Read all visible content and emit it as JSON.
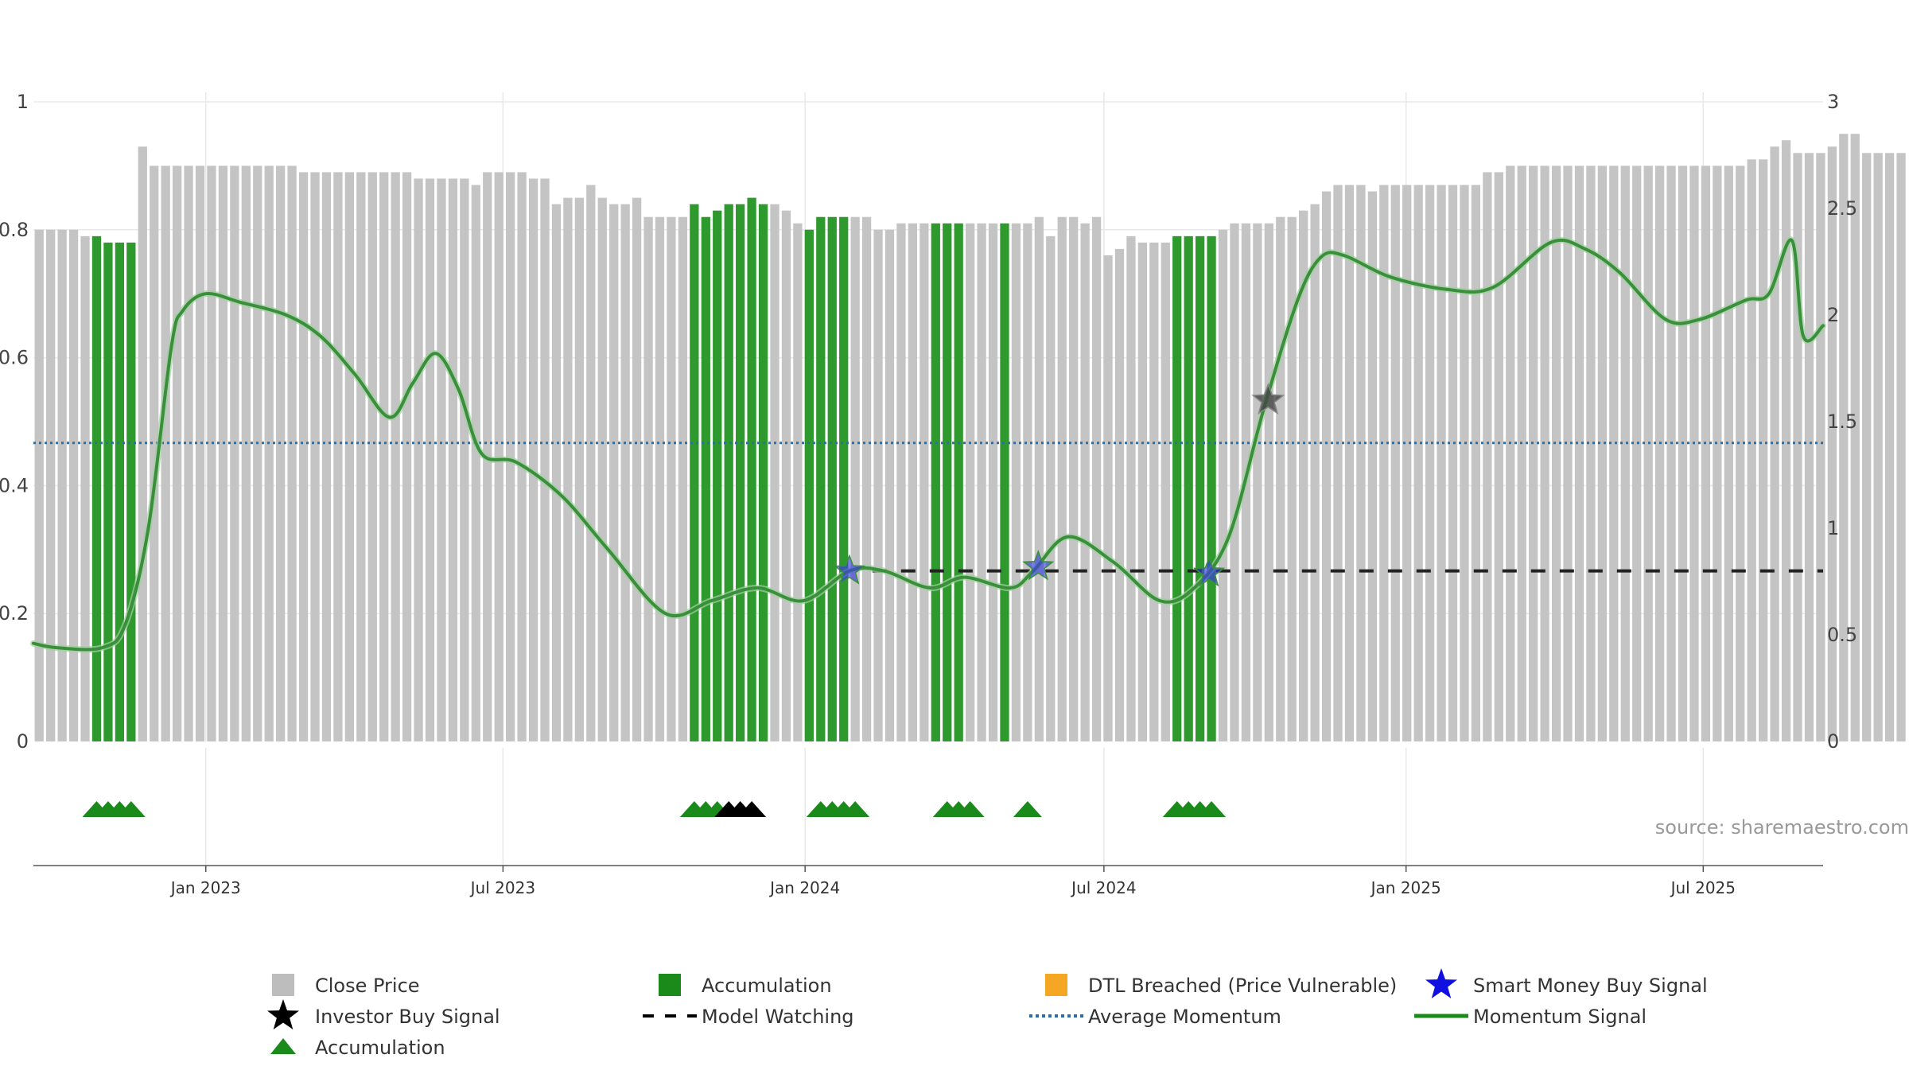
{
  "chart_data": {
    "type": "bar",
    "source_label": "source: sharemaestro.com",
    "left_axis": {
      "range": [
        0,
        1
      ],
      "ticks": [
        "0",
        "0.2",
        "0.4",
        "0.6",
        "0.8",
        "1"
      ],
      "tick_values": [
        0,
        0.2,
        0.4,
        0.6,
        0.8,
        1.0
      ]
    },
    "right_axis": {
      "range": [
        0,
        3
      ],
      "ticks": [
        "0",
        "0.5",
        "1",
        "1.5",
        "2",
        "2.5",
        "3"
      ],
      "tick_values": [
        0,
        0.5,
        1,
        1.5,
        2,
        2.5,
        3
      ]
    },
    "x_axis": {
      "start": "2022-09-18",
      "end": "2025-09-12",
      "tick_labels": [
        "Jan 2023",
        "Jul 2023",
        "Jan 2024",
        "Jul 2024",
        "Jan 2025",
        "Jul 2025"
      ],
      "tick_dates": [
        "2023-01-01",
        "2023-07-01",
        "2024-01-01",
        "2024-07-01",
        "2025-01-01",
        "2025-07-01"
      ]
    },
    "bars": {
      "start": "2022-09-18",
      "step_days": 7,
      "values": [
        0.8,
        0.8,
        0.8,
        0.8,
        0.79,
        0.79,
        0.78,
        0.78,
        0.78,
        0.93,
        0.9,
        0.9,
        0.9,
        0.9,
        0.9,
        0.9,
        0.9,
        0.9,
        0.9,
        0.9,
        0.9,
        0.9,
        0.9,
        0.89,
        0.89,
        0.89,
        0.89,
        0.89,
        0.89,
        0.89,
        0.89,
        0.89,
        0.89,
        0.88,
        0.88,
        0.88,
        0.88,
        0.88,
        0.87,
        0.89,
        0.89,
        0.89,
        0.89,
        0.88,
        0.88,
        0.84,
        0.85,
        0.85,
        0.87,
        0.85,
        0.84,
        0.84,
        0.85,
        0.82,
        0.82,
        0.82,
        0.82,
        0.84,
        0.82,
        0.83,
        0.84,
        0.84,
        0.85,
        0.84,
        0.84,
        0.83,
        0.81,
        0.8,
        0.82,
        0.82,
        0.82,
        0.82,
        0.82,
        0.8,
        0.8,
        0.81,
        0.81,
        0.81,
        0.81,
        0.81,
        0.81,
        0.81,
        0.81,
        0.81,
        0.81,
        0.81,
        0.81,
        0.82,
        0.79,
        0.82,
        0.82,
        0.81,
        0.82,
        0.76,
        0.77,
        0.79,
        0.78,
        0.78,
        0.78,
        0.79,
        0.79,
        0.79,
        0.79,
        0.8,
        0.81,
        0.81,
        0.81,
        0.81,
        0.82,
        0.82,
        0.83,
        0.84,
        0.86,
        0.87,
        0.87,
        0.87,
        0.86,
        0.87,
        0.87,
        0.87,
        0.87,
        0.87,
        0.87,
        0.87,
        0.87,
        0.87,
        0.89,
        0.89,
        0.9,
        0.9,
        0.9,
        0.9,
        0.9,
        0.9,
        0.9,
        0.9,
        0.9,
        0.9,
        0.9,
        0.9,
        0.9,
        0.9,
        0.9,
        0.9,
        0.9,
        0.9,
        0.9,
        0.9,
        0.9,
        0.91,
        0.91,
        0.93,
        0.94,
        0.92,
        0.92,
        0.92,
        0.93,
        0.95,
        0.95,
        0.92,
        0.92,
        0.92,
        0.92
      ],
      "accumulation_indices": [
        5,
        6,
        7,
        8,
        57,
        58,
        59,
        60,
        61,
        62,
        63,
        67,
        68,
        69,
        70,
        78,
        79,
        80,
        84,
        99,
        100,
        101,
        102
      ]
    },
    "momentum_signal": {
      "axis": "right",
      "points": [
        [
          "2022-09-18",
          0.46
        ],
        [
          "2022-10-02",
          0.44
        ],
        [
          "2022-10-30",
          0.44
        ],
        [
          "2022-11-13",
          0.55
        ],
        [
          "2022-11-27",
          1.0
        ],
        [
          "2022-12-11",
          1.85
        ],
        [
          "2022-12-18",
          2.02
        ],
        [
          "2023-01-01",
          2.1
        ],
        [
          "2023-01-22",
          2.06
        ],
        [
          "2023-02-19",
          2.0
        ],
        [
          "2023-03-12",
          1.9
        ],
        [
          "2023-04-02",
          1.72
        ],
        [
          "2023-04-23",
          1.52
        ],
        [
          "2023-05-07",
          1.68
        ],
        [
          "2023-05-21",
          1.82
        ],
        [
          "2023-06-04",
          1.65
        ],
        [
          "2023-06-18",
          1.35
        ],
        [
          "2023-07-09",
          1.31
        ],
        [
          "2023-08-06",
          1.15
        ],
        [
          "2023-09-03",
          0.9
        ],
        [
          "2023-10-08",
          0.6
        ],
        [
          "2023-11-05",
          0.66
        ],
        [
          "2023-12-03",
          0.72
        ],
        [
          "2023-12-31",
          0.66
        ],
        [
          "2024-01-28",
          0.8
        ],
        [
          "2024-02-18",
          0.8
        ],
        [
          "2024-03-17",
          0.72
        ],
        [
          "2024-04-07",
          0.77
        ],
        [
          "2024-05-05",
          0.72
        ],
        [
          "2024-05-19",
          0.8
        ],
        [
          "2024-06-09",
          0.96
        ],
        [
          "2024-07-07",
          0.84
        ],
        [
          "2024-08-04",
          0.66
        ],
        [
          "2024-08-25",
          0.72
        ],
        [
          "2024-09-15",
          0.96
        ],
        [
          "2024-10-06",
          1.55
        ],
        [
          "2024-10-27",
          2.07
        ],
        [
          "2024-11-10",
          2.27
        ],
        [
          "2024-11-24",
          2.28
        ],
        [
          "2024-12-22",
          2.18
        ],
        [
          "2025-01-26",
          2.12
        ],
        [
          "2025-02-23",
          2.13
        ],
        [
          "2025-03-30",
          2.34
        ],
        [
          "2025-04-20",
          2.31
        ],
        [
          "2025-05-11",
          2.2
        ],
        [
          "2025-06-08",
          1.98
        ],
        [
          "2025-06-29",
          1.98
        ],
        [
          "2025-07-27",
          2.07
        ],
        [
          "2025-08-10",
          2.1
        ],
        [
          "2025-08-24",
          2.35
        ],
        [
          "2025-08-31",
          1.9
        ],
        [
          "2025-09-12",
          1.95
        ]
      ]
    },
    "average_momentum": {
      "axis": "right",
      "value": 1.4
    },
    "model_watching": {
      "axis": "right",
      "value": 0.8,
      "start": "2024-02-11",
      "end": "2025-09-12"
    },
    "investor_buy_signals": [
      [
        "2024-10-09",
        1.6
      ]
    ],
    "smart_money_buy_signals": [
      [
        "2024-01-28",
        0.8
      ],
      [
        "2024-05-22",
        0.82
      ],
      [
        "2024-09-03",
        0.79
      ]
    ],
    "accumulation_triangles": [
      {
        "date": "2022-10-23",
        "color": "green"
      },
      {
        "date": "2022-10-30",
        "color": "green"
      },
      {
        "date": "2022-11-06",
        "color": "green"
      },
      {
        "date": "2022-11-13",
        "color": "green"
      },
      {
        "date": "2023-10-22",
        "color": "green"
      },
      {
        "date": "2023-10-29",
        "color": "green"
      },
      {
        "date": "2023-11-05",
        "color": "green"
      },
      {
        "date": "2023-11-12",
        "color": "black"
      },
      {
        "date": "2023-11-19",
        "color": "black"
      },
      {
        "date": "2023-11-26",
        "color": "black"
      },
      {
        "date": "2024-01-07",
        "color": "green"
      },
      {
        "date": "2024-01-14",
        "color": "green"
      },
      {
        "date": "2024-01-21",
        "color": "green"
      },
      {
        "date": "2024-01-28",
        "color": "green"
      },
      {
        "date": "2024-03-24",
        "color": "green"
      },
      {
        "date": "2024-03-31",
        "color": "green"
      },
      {
        "date": "2024-04-07",
        "color": "green"
      },
      {
        "date": "2024-05-12",
        "color": "green"
      },
      {
        "date": "2024-08-11",
        "color": "green"
      },
      {
        "date": "2024-08-18",
        "color": "green"
      },
      {
        "date": "2024-08-25",
        "color": "green"
      },
      {
        "date": "2024-09-01",
        "color": "green"
      }
    ],
    "legend": [
      {
        "label": "Close Price",
        "symbol": "square",
        "color": "#bdbdbd"
      },
      {
        "label": "Accumulation",
        "symbol": "square",
        "color": "#1a8a1a"
      },
      {
        "label": "DTL Breached (Price Vulnerable)",
        "symbol": "square",
        "color": "#f5a623"
      },
      {
        "label": "Smart Money Buy Signal",
        "symbol": "star",
        "color": "#1010e0"
      },
      {
        "label": "Investor Buy Signal",
        "symbol": "star",
        "color": "#000000"
      },
      {
        "label": "Model Watching",
        "symbol": "dash",
        "color": "#000000"
      },
      {
        "label": "Average Momentum",
        "symbol": "dot",
        "color": "#2a6fa8"
      },
      {
        "label": "Momentum Signal",
        "symbol": "line",
        "color": "#1a8a1a"
      },
      {
        "label": "Accumulation",
        "symbol": "triangle",
        "color": "#1a8a1a"
      }
    ],
    "colors": {
      "close_bar": "#c4c4c4",
      "accumulation_bar": "#2e9a2e",
      "momentum_line": "#3a8f3a",
      "average_line": "#2a6fa8",
      "model_watching": "#222222",
      "triangle_green": "#1a8a1a",
      "triangle_black": "#000000",
      "smart_star": "#3a3ae0",
      "investor_star": "#444444",
      "grid": "#e8e8e8"
    }
  }
}
